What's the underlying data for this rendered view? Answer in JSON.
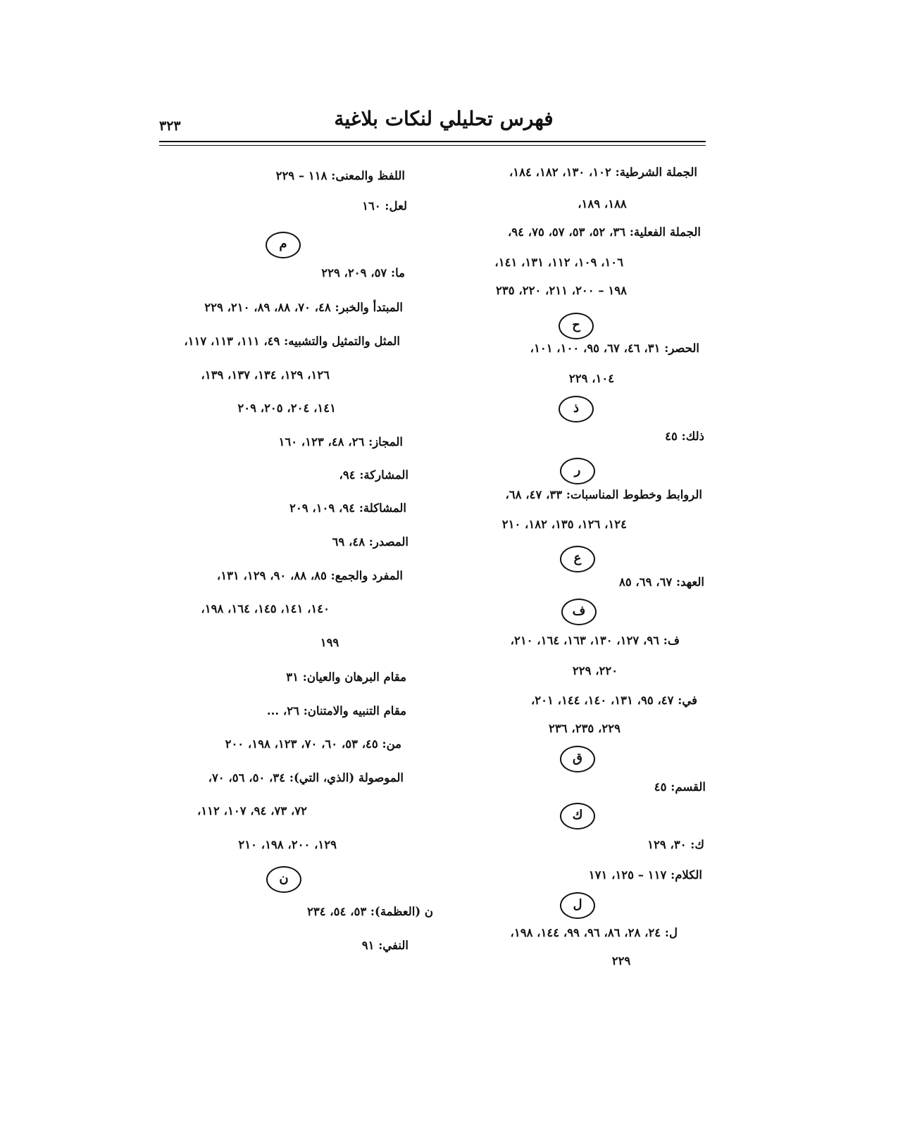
{
  "header": {
    "title": "فهرس تحليلي لنكات بلاغية",
    "page_number": "٣٢٣"
  },
  "right_column": [
    "الجملة الشرطية: ١٠٢، ١٣٠، ١٨٢، ١٨٤،",
    "١٨٨، ١٨٩،",
    "الجملة الفعلية: ٣٦، ٥٢، ٥٣، ٥٧، ٧٥، ٩٤،",
    "١٠٦، ١٠٩، ١١٢، ١٣١، ١٤١،",
    "١٩٨ – ٢٠٠، ٢١١، ٢٢٠، ٢٣٥",
    "ح",
    "الحصر: ٣١، ٤٦، ٦٧، ٩٥، ١٠٠، ١٠١،",
    "١٠٤، ٢٢٩",
    "ذ",
    "ذلك: ٤٥",
    "ر",
    "الروابط وخطوط المناسبات: ٣٣، ٤٧، ٦٨،",
    "١٢٤، ١٢٦، ١٣٥، ١٨٢، ٢١٠",
    "ع",
    "العهد: ٦٧، ٦٩، ٨٥",
    "ف",
    "ف: ٩٦، ١٢٧، ١٣٠، ١٦٣، ١٦٤، ٢١٠،",
    "٢٢٠، ٢٢٩",
    "في: ٤٧، ٩٥، ١٣١، ١٤٠، ١٤٤، ٢٠١،",
    "٢٢٩، ٢٣٥، ٢٣٦",
    "ق",
    "القسم: ٤٥",
    "ك",
    "ك: ٣٠، ١٢٩",
    "الكلام: ١١٧ – ١٢٥، ١٧١",
    "ل",
    "ل: ٢٤، ٢٨، ٨٦، ٩٦، ٩٩، ١٤٤، ١٩٨،",
    "٢٢٩"
  ],
  "left_column": [
    "اللفظ والمعنى: ١١٨ – ٢٢٩",
    "لعل: ١٦٠",
    "م",
    "ما: ٥٧، ٢٠٩، ٢٢٩",
    "المبتدأ والخبر: ٤٨، ٧٠، ٨٨، ٨٩، ٢١٠، ٢٢٩",
    "المثل والتمثيل والتشبيه: ٤٩، ١١١، ١١٣، ١١٧،",
    "١٢٦، ١٢٩، ١٣٤، ١٣٧، ١٣٩،",
    "١٤١، ٢٠٤، ٢٠٥، ٢٠٩",
    "المجاز: ٢٦، ٤٨، ١٢٣، ١٦٠",
    "المشاركة: ٩٤،",
    "المشاكلة: ٩٤، ١٠٩، ٢٠٩",
    "المصدر: ٤٨، ٦٩",
    "المفرد والجمع: ٨٥، ٨٨، ٩٠، ١٢٩، ١٣١،",
    "١٤٠، ١٤١، ١٤٥، ١٦٤، ١٩٨،",
    "١٩٩",
    "مقام البرهان والعيان: ٣١",
    "مقام التنبيه والامتنان: ٢٦، ...",
    "من: ٤٥، ٥٣، ٦٠، ٧٠، ١٢٣، ١٩٨، ٢٠٠",
    "الموصولة (الذي، التي): ٣٤، ٥٠، ٥٦، ٧٠،",
    "٧٢، ٧٣، ٩٤، ١٠٧، ١١٢،",
    "١٢٩، ٢٠٠، ١٩٨، ٢١٠",
    "ن",
    "ن (العظمة): ٥٣، ٥٤، ٢٣٤",
    "النفي: ٩١"
  ]
}
